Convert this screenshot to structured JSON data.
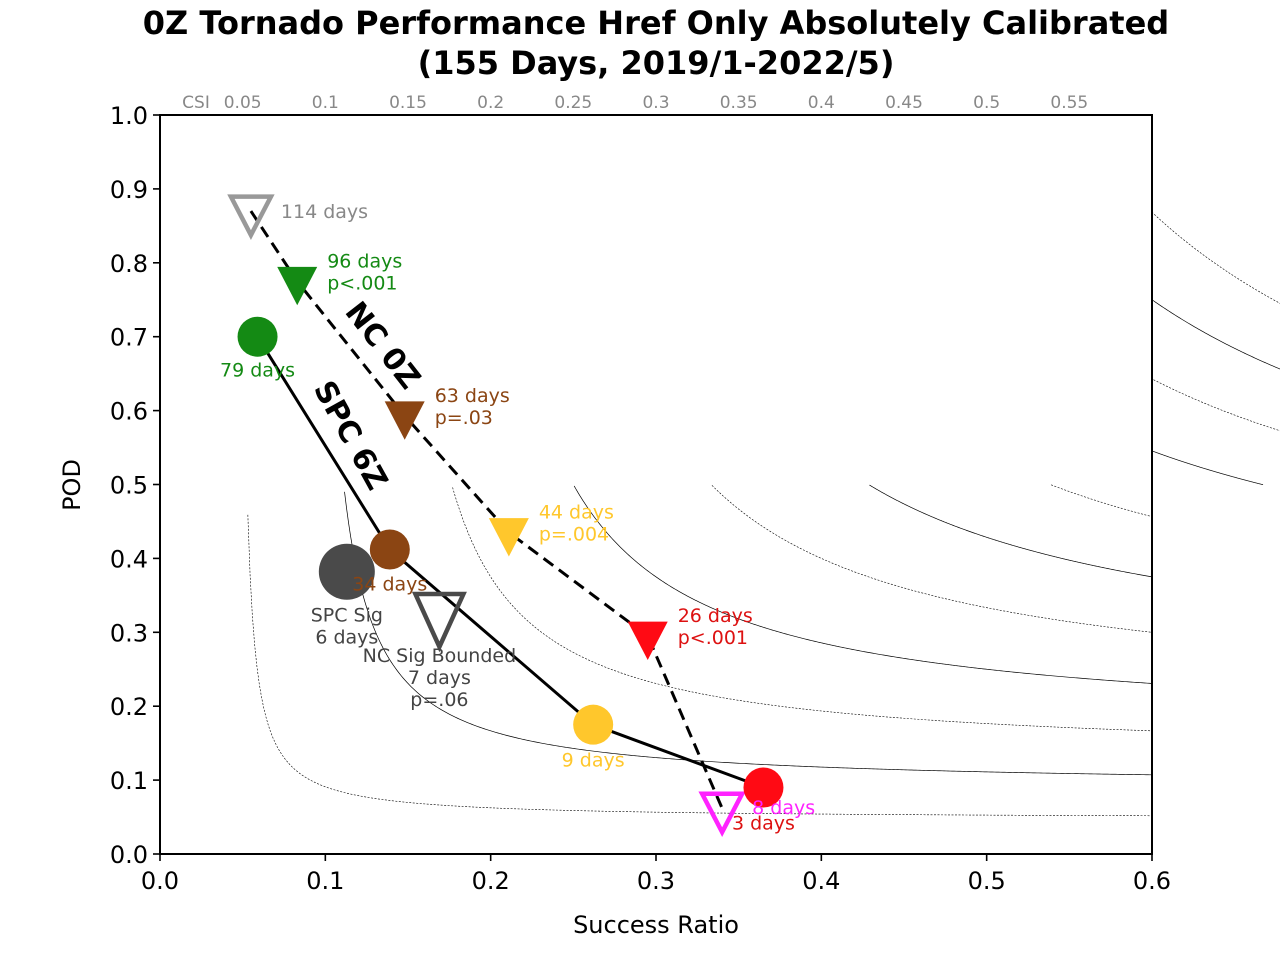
{
  "chart_data": {
    "type": "scatter",
    "title_line1": "0Z Tornado Performance Href Only Absolutely Calibrated",
    "title_line2": "(155 Days, 2019/1-2022/5)",
    "xlabel": "Success Ratio",
    "ylabel": "POD",
    "xlim": [
      0.0,
      0.6
    ],
    "ylim": [
      0.0,
      1.0
    ],
    "x_ticks": [
      "0.0",
      "0.1",
      "0.2",
      "0.3",
      "0.4",
      "0.5",
      "0.6"
    ],
    "y_ticks": [
      "0.0",
      "0.1",
      "0.2",
      "0.3",
      "0.4",
      "0.5",
      "0.6",
      "0.7",
      "0.8",
      "0.9",
      "1.0"
    ],
    "csi_label": "CSI",
    "csi_values": [
      "0.05",
      "0.1",
      "0.15",
      "0.2",
      "0.25",
      "0.3",
      "0.35",
      "0.4",
      "0.45",
      "0.5",
      "0.55"
    ],
    "grid": false,
    "line_labels": [
      {
        "text": "NC 0Z",
        "x": 0.13,
        "y": 0.68,
        "angle": 52
      },
      {
        "text": "SPC 6Z",
        "x": 0.11,
        "y": 0.56,
        "angle": 61
      }
    ],
    "series": [
      {
        "name": "NC 0Z",
        "line_style": "dashed",
        "points": [
          {
            "x": 0.055,
            "y": 0.87,
            "color": "#999999",
            "marker": "triangle-down",
            "filled": false,
            "label": [
              "114 days"
            ],
            "label_color": "#888888"
          },
          {
            "x": 0.083,
            "y": 0.775,
            "color": "#148a14",
            "marker": "triangle-down",
            "filled": true,
            "label": [
              "96 days",
              "p<.001"
            ],
            "label_color": "#148a14"
          },
          {
            "x": 0.148,
            "y": 0.593,
            "color": "#8b4513",
            "marker": "triangle-down",
            "filled": true,
            "label": [
              "63 days",
              "p=.03"
            ],
            "label_color": "#8b4513"
          },
          {
            "x": 0.211,
            "y": 0.435,
            "color": "#ffc72c",
            "marker": "triangle-down",
            "filled": true,
            "label": [
              "44 days",
              "p=.004"
            ],
            "label_color": "#ffc72c"
          },
          {
            "x": 0.295,
            "y": 0.295,
            "color": "#ff0a14",
            "marker": "triangle-down",
            "filled": true,
            "label": [
              "26 days",
              "p<.001"
            ],
            "label_color": "#dd1111"
          },
          {
            "x": 0.34,
            "y": 0.062,
            "color": "#ff22ff",
            "marker": "triangle-down",
            "filled": false,
            "label": [
              "8 days"
            ],
            "label_color": "#ff22ff"
          }
        ]
      },
      {
        "name": "SPC 6Z",
        "line_style": "solid",
        "points": [
          {
            "x": 0.059,
            "y": 0.7,
            "color": "#148a14",
            "marker": "circle",
            "filled": true,
            "label": [
              "79 days"
            ],
            "label_color": "#148a14"
          },
          {
            "x": 0.139,
            "y": 0.412,
            "color": "#8b4513",
            "marker": "circle",
            "filled": true,
            "label": [
              "34 days"
            ],
            "label_color": "#8b4513"
          },
          {
            "x": 0.262,
            "y": 0.175,
            "color": "#ffc72c",
            "marker": "circle",
            "filled": true,
            "label": [
              "9 days"
            ],
            "label_color": "#ffc72c"
          },
          {
            "x": 0.365,
            "y": 0.09,
            "color": "#ff0a14",
            "marker": "circle",
            "filled": true,
            "label": [
              "3 days"
            ],
            "label_color": "#dd1111"
          }
        ]
      }
    ],
    "extra_points": [
      {
        "name": "SPC Sig",
        "x": 0.113,
        "y": 0.382,
        "color": "#4a4a4a",
        "marker": "circle",
        "filled": true,
        "label": [
          "SPC Sig",
          "6 days"
        ],
        "label_color": "#444444"
      },
      {
        "name": "NC Sig Bounded",
        "x": 0.169,
        "y": 0.325,
        "color": "#4a4a4a",
        "marker": "triangle-down",
        "filled": false,
        "label": [
          "NC Sig Bounded",
          "7 days",
          "p=.06"
        ],
        "label_color": "#444444"
      }
    ]
  }
}
